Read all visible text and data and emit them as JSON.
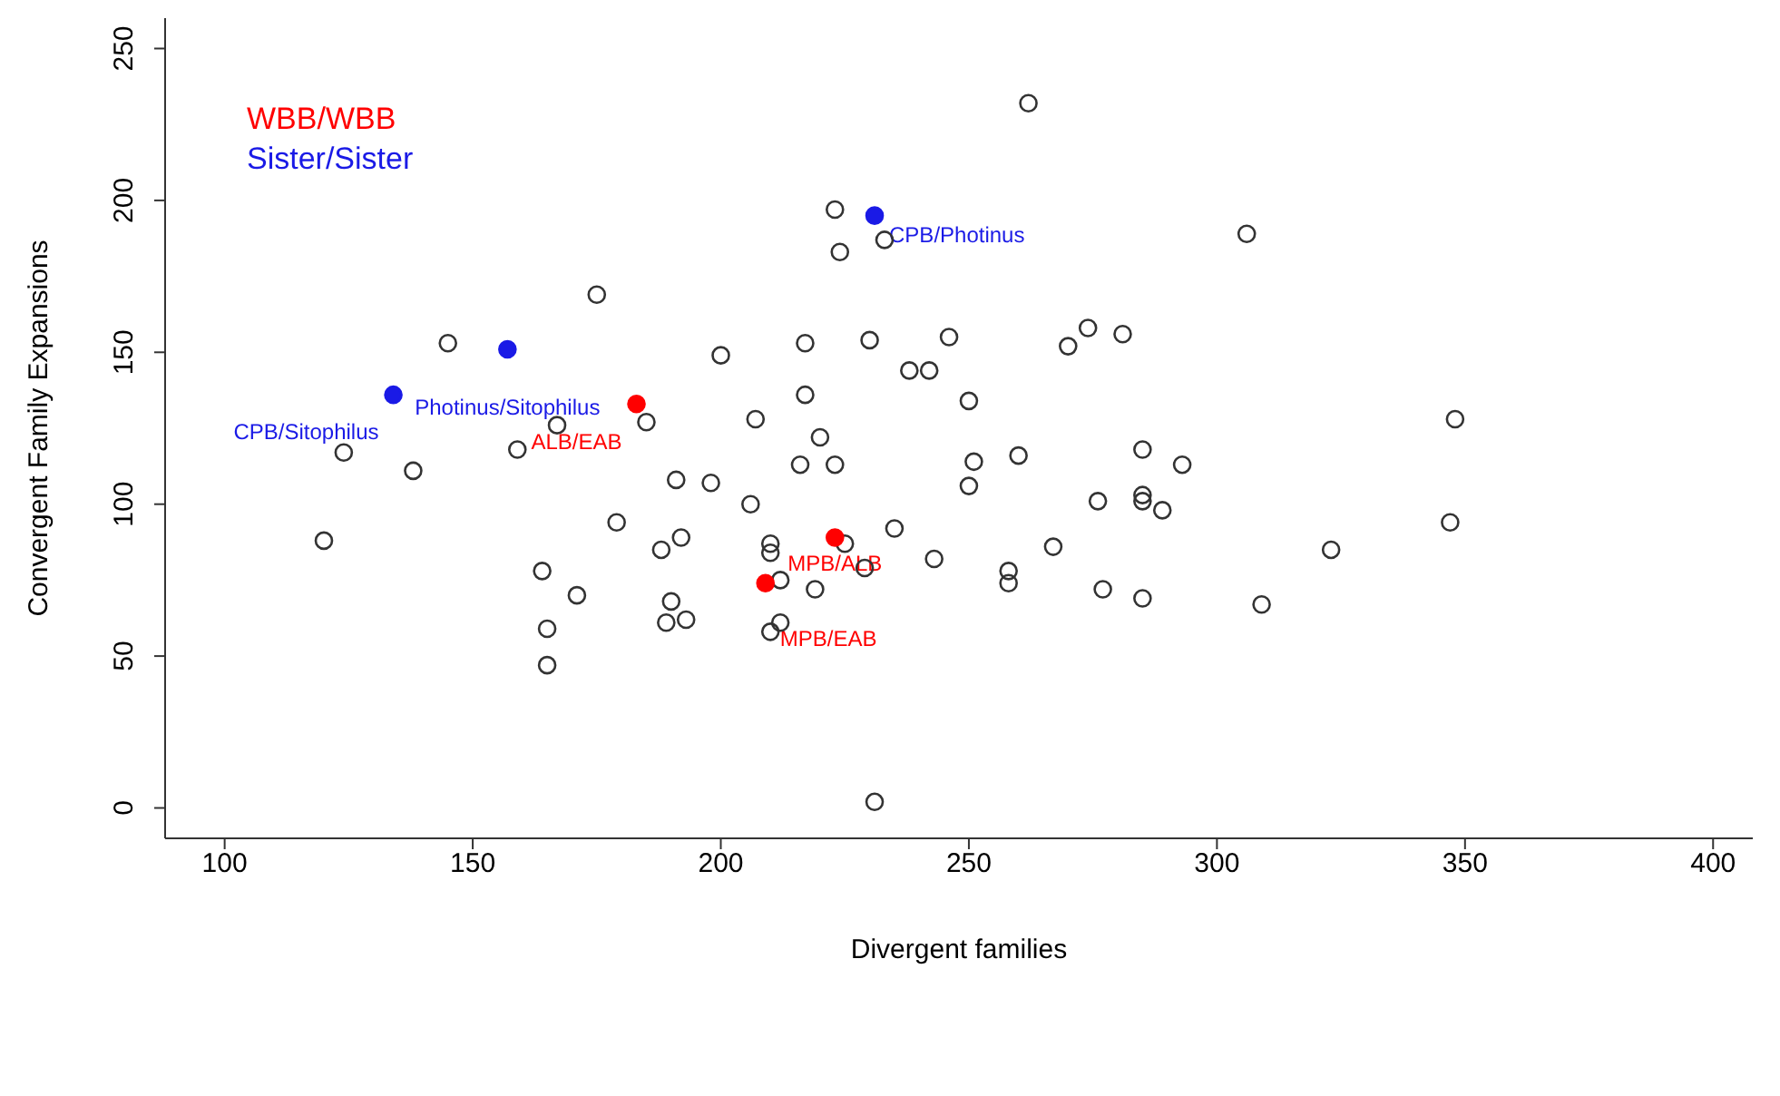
{
  "chart_data": {
    "type": "scatter",
    "xlabel": "Divergent families",
    "ylabel": "Convergent Family Expansions",
    "xlim": [
      88,
      408
    ],
    "ylim": [
      -10,
      260
    ],
    "xticks": [
      100,
      150,
      200,
      250,
      300,
      350,
      400
    ],
    "yticks": [
      0,
      50,
      100,
      150,
      200,
      250
    ],
    "grid": false,
    "legend": "top left",
    "marker": "circle",
    "series": [
      {
        "color": "#333333",
        "x": [
          262,
          223,
          233,
          224,
          306,
          175,
          145,
          200,
          217,
          230,
          246,
          274,
          281,
          270,
          238,
          242,
          250,
          217,
          207,
          185,
          167,
          124,
          159,
          138,
          220,
          223,
          216,
          251,
          260,
          285,
          293,
          348,
          191,
          198,
          250,
          276,
          285,
          285,
          289,
          206,
          120,
          179,
          235,
          225,
          210,
          210,
          192,
          188,
          243,
          267,
          229,
          164,
          323,
          347,
          258,
          258,
          212,
          219,
          277,
          285,
          309,
          171,
          190,
          165,
          189,
          193,
          212,
          210,
          165,
          231
        ],
        "values": [
          232,
          197,
          187,
          183,
          189,
          169,
          153,
          149,
          153,
          154,
          155,
          158,
          156,
          152,
          144,
          144,
          134,
          136,
          128,
          127,
          126,
          117,
          118,
          111,
          122,
          113,
          113,
          114,
          116,
          118,
          113,
          128,
          108,
          107,
          106,
          101,
          101,
          103,
          98,
          100,
          88,
          94,
          92,
          87,
          87,
          84,
          89,
          85,
          82,
          86,
          79,
          78,
          85,
          94,
          78,
          74,
          75,
          72,
          72,
          69,
          67,
          70,
          68,
          59,
          61,
          62,
          61,
          58,
          47,
          2
        ]
      },
      {
        "name": "WBB/WBB",
        "color": "#ff0000",
        "x": [
          183,
          223,
          209
        ],
        "values": [
          133,
          89,
          74
        ]
      },
      {
        "name": "Sister/Sister",
        "color": "#1a1ae6",
        "x": [
          231,
          157,
          134
        ],
        "values": [
          195,
          151,
          136
        ]
      }
    ],
    "annotations": [
      {
        "text": "CPB/Photinus",
        "x": 231,
        "y": 195
      },
      {
        "text": "Photinus/Sitophilus",
        "x": 157,
        "y": 151
      },
      {
        "text": "CPB/Sitophilus",
        "x": 134,
        "y": 136
      },
      {
        "text": "ALB/EAB",
        "x": 183,
        "y": 133
      },
      {
        "text": "MPB/ALB",
        "x": 223,
        "y": 89
      },
      {
        "text": "MPB/EAB",
        "x": 209,
        "y": 74
      }
    ]
  }
}
